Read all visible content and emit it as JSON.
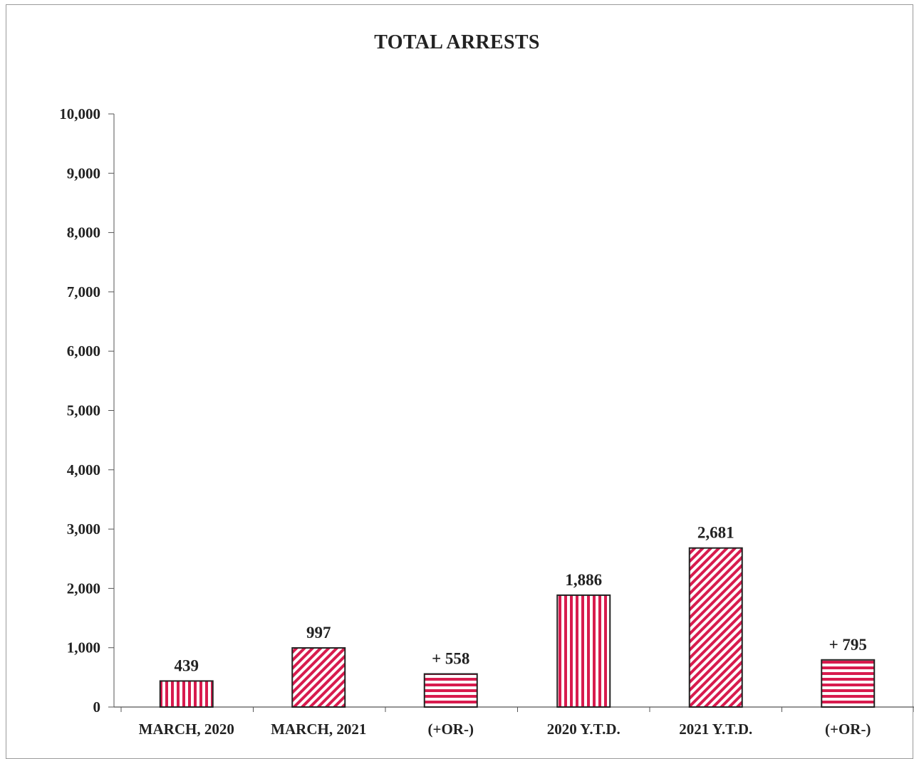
{
  "chart_data": {
    "type": "bar",
    "title": "TOTAL ARRESTS",
    "xlabel": "",
    "ylabel": "",
    "ylim": [
      0,
      10000
    ],
    "yticks": [
      0,
      1000,
      2000,
      3000,
      4000,
      5000,
      6000,
      7000,
      8000,
      9000,
      10000
    ],
    "ytick_labels": [
      "0",
      "1,000",
      "2,000",
      "3,000",
      "4,000",
      "5,000",
      "6,000",
      "7,000",
      "8,000",
      "9,000",
      "10,000"
    ],
    "grid": false,
    "categories": [
      "MARCH, 2020",
      "MARCH, 2021",
      "(+OR-)",
      "2020 Y.T.D.",
      "2021 Y.T.D.",
      "(+OR-)"
    ],
    "values": [
      439,
      997,
      558,
      1886,
      2681,
      795
    ],
    "data_labels": [
      "439",
      "997",
      "+ 558",
      "1,886",
      "2,681",
      "+ 795"
    ],
    "patterns": [
      "vertical-stripes",
      "diagonal-stripes",
      "horizontal-stripes",
      "vertical-stripes",
      "diagonal-stripes",
      "horizontal-stripes"
    ],
    "colors": {
      "bar_fill": "#d81b4e",
      "bar_edge": "#222222",
      "axis": "#555555"
    }
  }
}
